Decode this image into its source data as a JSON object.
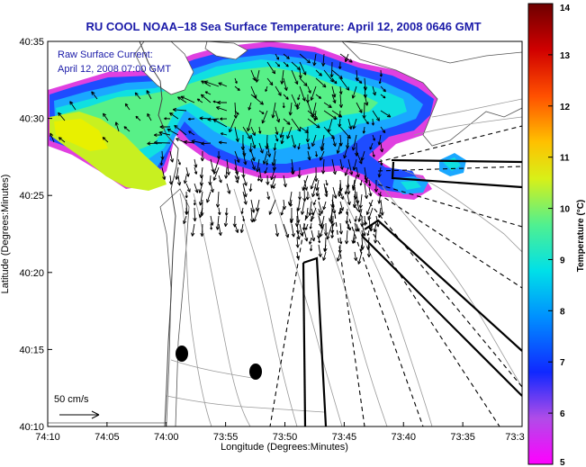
{
  "title": "RU COOL  NOAA–18  Sea Surface Temperature:  April 12, 2008 0646 GMT",
  "annotation": {
    "line1": "Raw Surface Current:",
    "line2": "April 12, 2008 07:00 GMT"
  },
  "scale_label": "50 cm/s",
  "colors": {
    "title": "#1a1aa8",
    "land": "#ffffff",
    "contour": "#888888",
    "vectors": "#000000"
  },
  "chart_data": {
    "type": "heatmap",
    "title": "RU COOL  NOAA–18  Sea Surface Temperature:  April 12, 2008 0646 GMT",
    "xlabel": "Longitude (Degrees:Minutes)",
    "ylabel": "Latitude (Degrees:Minutes)",
    "x_ticks": [
      "74:10",
      "74:05",
      "74:00",
      "73:55",
      "73:50",
      "73:45",
      "73:40",
      "73:35",
      "73:3"
    ],
    "y_ticks": [
      "40:35",
      "40:30",
      "40:25",
      "40:20",
      "40:15",
      "40:10"
    ],
    "xlim_minutes_west": [
      70,
      30
    ],
    "ylim_minutes_north": [
      10,
      35
    ],
    "colorbar": {
      "label": "Temperature (°C)",
      "range": [
        5,
        14
      ],
      "ticks": [
        "5",
        "6",
        "7",
        "8",
        "9",
        "10",
        "11",
        "12",
        "13",
        "14"
      ],
      "colormap": [
        "#ff00ff",
        "#b04ce8",
        "#1028ff",
        "#0090ff",
        "#00e0e8",
        "#50f090",
        "#d8f018",
        "#ffc000",
        "#ff5000",
        "#d00000",
        "#6e0000"
      ]
    },
    "sst_observed_range": [
      6,
      10
    ],
    "vector_scale_cm_s": 50
  }
}
